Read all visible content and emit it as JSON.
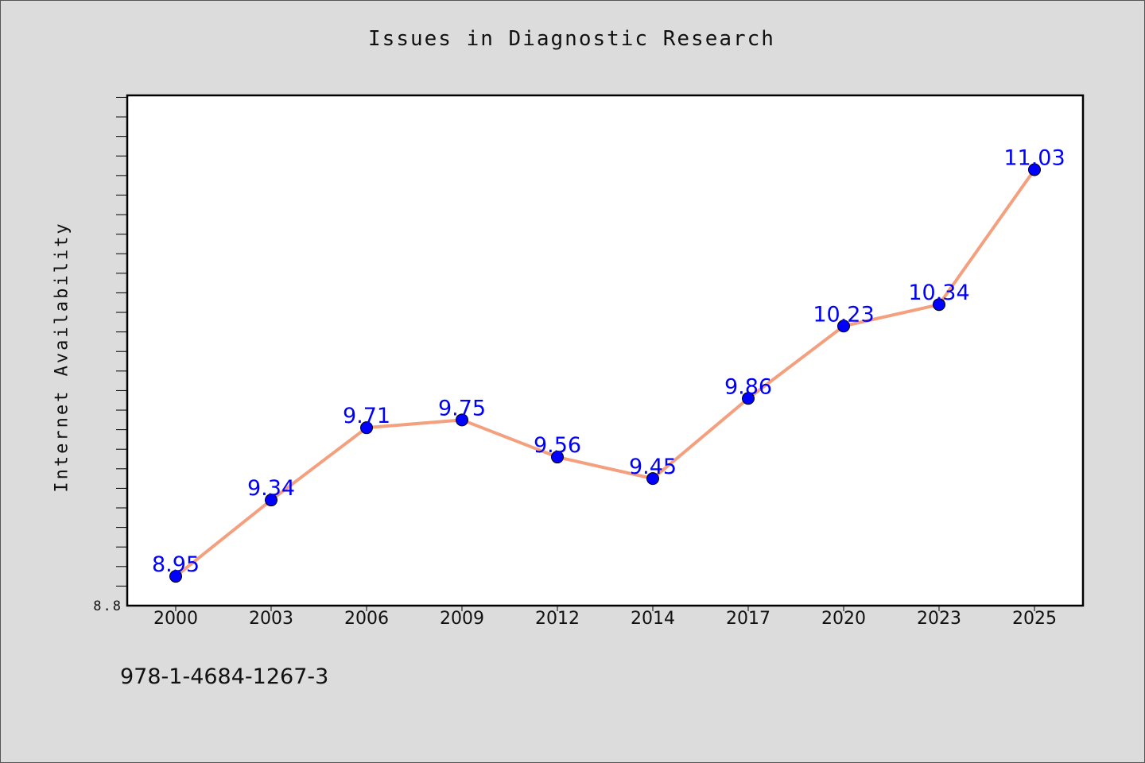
{
  "chart_data": {
    "type": "line",
    "title": "Issues in Diagnostic Research",
    "xlabel": "",
    "ylabel": "Internet Availability",
    "categories": [
      "2000",
      "2003",
      "2006",
      "2009",
      "2012",
      "2014",
      "2017",
      "2020",
      "2023",
      "2025"
    ],
    "series": [
      {
        "values": [
          8.95,
          9.34,
          9.71,
          9.75,
          9.56,
          9.45,
          9.86,
          10.23,
          10.34,
          11.03
        ],
        "labels": [
          "8.95",
          "9.34",
          "9.71",
          "9.75",
          "9.56",
          "9.45",
          "9.86",
          "10.23",
          "10.34",
          "11.03"
        ]
      }
    ],
    "ylim": [
      8.8,
      11.41
    ],
    "y_tick_labels": [
      "8.8"
    ],
    "line_color": "#f4a07f",
    "marker_color": "#0000ff",
    "label_color": "#0000ff",
    "grid": false
  },
  "footer": {
    "isbn": "978-1-4684-1267-3"
  }
}
